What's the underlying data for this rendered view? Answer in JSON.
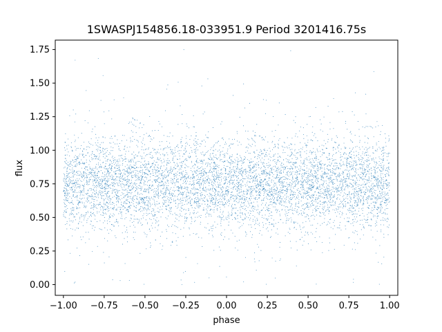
{
  "chart_data": {
    "type": "scatter",
    "title": "1SWASPJ154856.18-033951.9 Period 3201416.75s",
    "xlabel": "phase",
    "ylabel": "flux",
    "xlim": [
      -1.05,
      1.05
    ],
    "ylim": [
      -0.08,
      1.82
    ],
    "xticks": [
      -1.0,
      -0.75,
      -0.5,
      -0.25,
      0.0,
      0.25,
      0.5,
      0.75,
      1.0
    ],
    "xtick_labels": [
      "−1.00",
      "−0.75",
      "−0.50",
      "−0.25",
      "0.00",
      "0.25",
      "0.50",
      "0.75",
      "1.00"
    ],
    "yticks": [
      0.0,
      0.25,
      0.5,
      0.75,
      1.0,
      1.25,
      1.5,
      1.75
    ],
    "ytick_labels": [
      "0.00",
      "0.25",
      "0.50",
      "0.75",
      "1.00",
      "1.25",
      "1.50",
      "1.75"
    ],
    "grid": false,
    "legend": "none",
    "marker_color": "#1f77b4",
    "marker": "point",
    "series": [
      {
        "x_range": [
          -1.0,
          1.0
        ],
        "core_y_range": [
          0.45,
          1.05
        ],
        "median_y": 0.75,
        "max_y": 1.75,
        "min_y": 0.0,
        "point_density": "dense, thousands of points"
      }
    ]
  }
}
